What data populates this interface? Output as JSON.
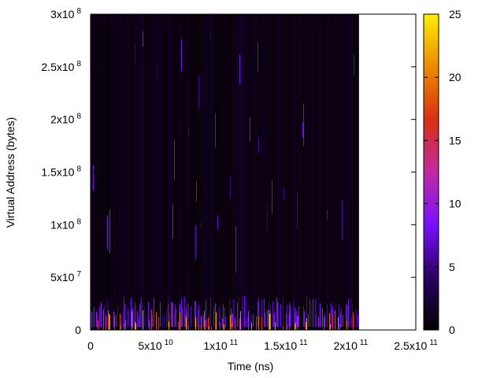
{
  "chart_data": {
    "type": "heatmap",
    "title": "",
    "xlabel": "Time (ns)",
    "ylabel": "Virtual Address (bytes)",
    "xlim": [
      0,
      250000000000
    ],
    "ylim": [
      0,
      300000000
    ],
    "data_extent_x": [
      0,
      206000000000
    ],
    "x_ticks": [
      {
        "value": 0,
        "base": "0",
        "exp": ""
      },
      {
        "value": 50000000000,
        "base": "5x10",
        "exp": "10"
      },
      {
        "value": 100000000000,
        "base": "1x10",
        "exp": "11"
      },
      {
        "value": 150000000000,
        "base": "1.5x10",
        "exp": "11"
      },
      {
        "value": 200000000000,
        "base": "2x10",
        "exp": "11"
      },
      {
        "value": 250000000000,
        "base": "2.5x10",
        "exp": "11"
      }
    ],
    "y_ticks": [
      {
        "value": 0,
        "base": "0",
        "exp": ""
      },
      {
        "value": 50000000,
        "base": "5x10",
        "exp": "7"
      },
      {
        "value": 100000000,
        "base": "1x10",
        "exp": "8"
      },
      {
        "value": 150000000,
        "base": "1.5x10",
        "exp": "8"
      },
      {
        "value": 200000000,
        "base": "2x10",
        "exp": "8"
      },
      {
        "value": 250000000,
        "base": "2.5x10",
        "exp": "8"
      },
      {
        "value": 300000000,
        "base": "3x10",
        "exp": "8"
      }
    ],
    "colorbar": {
      "range": [
        0,
        25
      ],
      "ticks": [
        0,
        5,
        10,
        15,
        20,
        25
      ],
      "colormap": [
        "#000000",
        "#2a0060",
        "#7a10ff",
        "#c02aa0",
        "#d83010",
        "#ee8a00",
        "#ffee00"
      ]
    },
    "grid": false,
    "legend": "none"
  }
}
